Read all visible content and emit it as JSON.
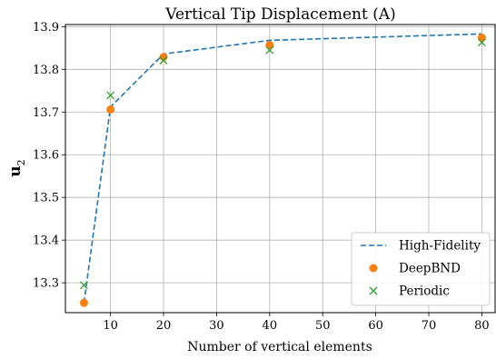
{
  "chart_data": {
    "type": "line",
    "title": "Vertical Tip Displacement (A)",
    "xlabel": "Number of vertical elements",
    "ylabel_main": "u",
    "ylabel_sub": "2",
    "xlim": [
      1.5,
      82.5
    ],
    "ylim": [
      13.23,
      13.905
    ],
    "x_ticks": [
      10,
      20,
      30,
      40,
      50,
      60,
      70,
      80
    ],
    "y_ticks": [
      13.3,
      13.4,
      13.5,
      13.6,
      13.7,
      13.8,
      13.9
    ],
    "x_tick_labels": [
      "10",
      "20",
      "30",
      "40",
      "50",
      "60",
      "70",
      "80"
    ],
    "y_tick_labels": [
      "13.3",
      "13.4",
      "13.5",
      "13.6",
      "13.7",
      "13.8",
      "13.9"
    ],
    "grid": true,
    "legend_position": "lower-right",
    "series": [
      {
        "name": "High-Fidelity",
        "style": "dashed-line",
        "color": "#1f77b4",
        "x": [
          5,
          10,
          20,
          40,
          80
        ],
        "y": [
          13.253,
          13.712,
          13.836,
          13.868,
          13.883
        ]
      },
      {
        "name": "DeepBND",
        "style": "circle-marker",
        "color": "#ff7f0e",
        "x": [
          5,
          10,
          20,
          40,
          80
        ],
        "y": [
          13.253,
          13.706,
          13.829,
          13.857,
          13.874
        ]
      },
      {
        "name": "Periodic",
        "style": "x-marker",
        "color": "#2ca02c",
        "x": [
          5,
          10,
          20,
          40,
          80
        ],
        "y": [
          13.294,
          13.739,
          13.821,
          13.845,
          13.863
        ]
      }
    ]
  }
}
